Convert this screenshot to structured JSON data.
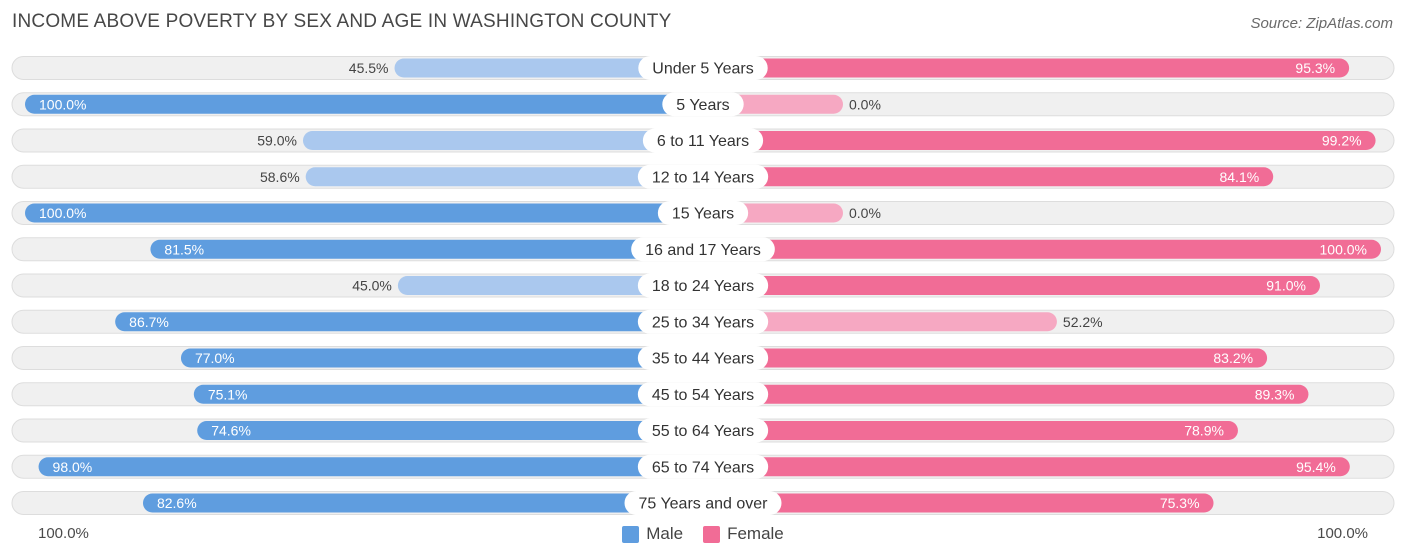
{
  "title": "INCOME ABOVE POVERTY BY SEX AND AGE IN WASHINGTON COUNTY",
  "source": "Source: ZipAtlas.com",
  "colors": {
    "male_strong": "#5f9ddf",
    "male_light": "#aac8ee",
    "female_strong": "#f16c96",
    "female_light": "#f6a8c2",
    "track": "#f0f0f0",
    "track_border": "#dddddd"
  },
  "chart_data": {
    "type": "bar",
    "orientation": "horizontal-diverging",
    "title": "INCOME ABOVE POVERTY BY SEX AND AGE IN WASHINGTON COUNTY",
    "categories": [
      "Under 5 Years",
      "5 Years",
      "6 to 11 Years",
      "12 to 14 Years",
      "15 Years",
      "16 and 17 Years",
      "18 to 24 Years",
      "25 to 34 Years",
      "35 to 44 Years",
      "45 to 54 Years",
      "55 to 64 Years",
      "65 to 74 Years",
      "75 Years and over"
    ],
    "series": [
      {
        "name": "Male",
        "values": [
          45.5,
          100.0,
          59.0,
          58.6,
          100.0,
          81.5,
          45.0,
          86.7,
          77.0,
          75.1,
          74.6,
          98.0,
          82.6
        ]
      },
      {
        "name": "Female",
        "values": [
          95.3,
          0.0,
          99.2,
          84.1,
          0.0,
          100.0,
          91.0,
          52.2,
          83.2,
          89.3,
          78.9,
          95.4,
          75.3
        ]
      }
    ],
    "xlim": [
      0,
      100
    ],
    "axis_left_label": "100.0%",
    "axis_right_label": "100.0%",
    "legend": [
      "Male",
      "Female"
    ]
  }
}
